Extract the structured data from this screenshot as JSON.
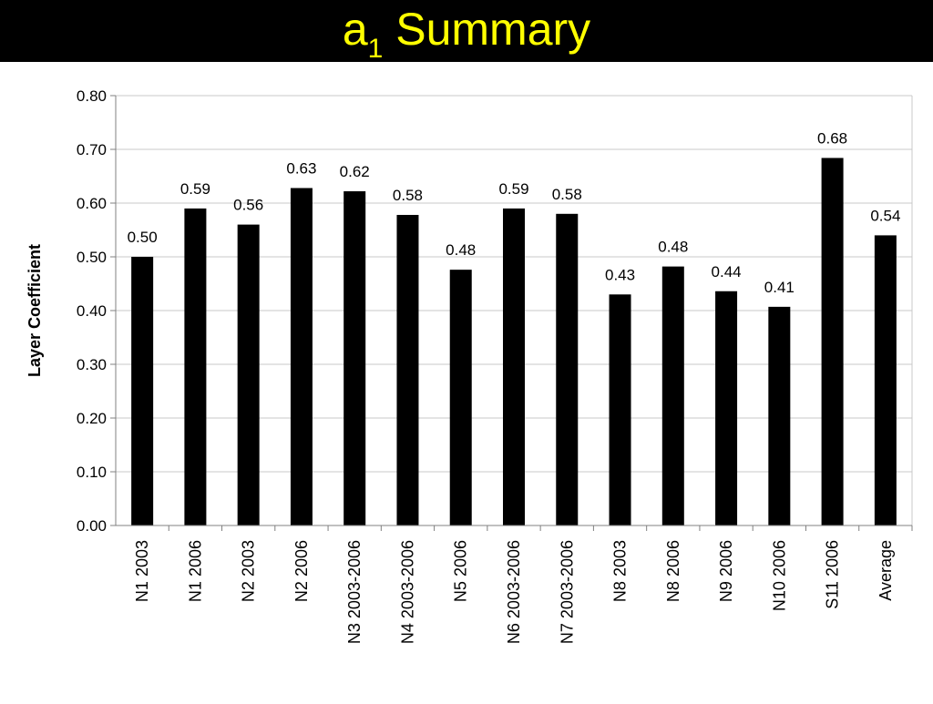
{
  "title": {
    "main": "a",
    "subscript": "1",
    "rest": " Summary"
  },
  "colors": {
    "title_bar": "#000000",
    "title_text": "#ffff00",
    "bar": "#000000",
    "grid": "#c8c8c8"
  },
  "chart_data": {
    "type": "bar",
    "title": "",
    "xlabel": "",
    "ylabel": "Layer Coefficient",
    "ylim": [
      0,
      0.8
    ],
    "yticks": [
      "0.00",
      "0.10",
      "0.20",
      "0.30",
      "0.40",
      "0.50",
      "0.60",
      "0.70",
      "0.80"
    ],
    "grid": true,
    "legend": "none",
    "categories": [
      "N1 2003",
      "N1 2006",
      "N2 2003",
      "N2 2006",
      "N3 2003-2006",
      "N4 2003-2006",
      "N5 2006",
      "N6 2003-2006",
      "N7 2003-2006",
      "N8 2003",
      "N8 2006",
      "N9 2006",
      "N10 2006",
      "S11 2006",
      "Average"
    ],
    "values": [
      0.5,
      0.59,
      0.56,
      0.628,
      0.622,
      0.578,
      0.476,
      0.59,
      0.58,
      0.43,
      0.482,
      0.436,
      0.407,
      0.684,
      0.54
    ],
    "data_labels": [
      "0.50",
      "0.59",
      "0.56",
      "0.63",
      "0.62",
      "0.58",
      "0.48",
      "0.59",
      "0.58",
      "0.43",
      "0.48",
      "0.44",
      "0.41",
      "0.68",
      "0.54"
    ]
  }
}
